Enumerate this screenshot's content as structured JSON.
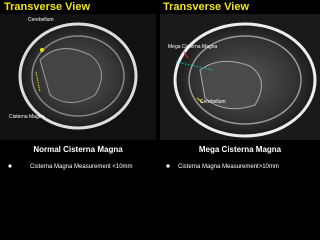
{
  "left": {
    "title": "Transverse View",
    "labels": [
      "Cerebellum",
      "Cisterna Magna"
    ],
    "caption": "Normal Cisterna Magna",
    "bullet": "Cisterna Magna Measurement <10mm"
  },
  "right": {
    "title": "Transverse View",
    "labels": [
      "Mega Cisterna Magna",
      "Cerebellum"
    ],
    "caption": "Mega Cisterna Magna",
    "bullet": "Cisterna Magna Measurement>10mm"
  }
}
